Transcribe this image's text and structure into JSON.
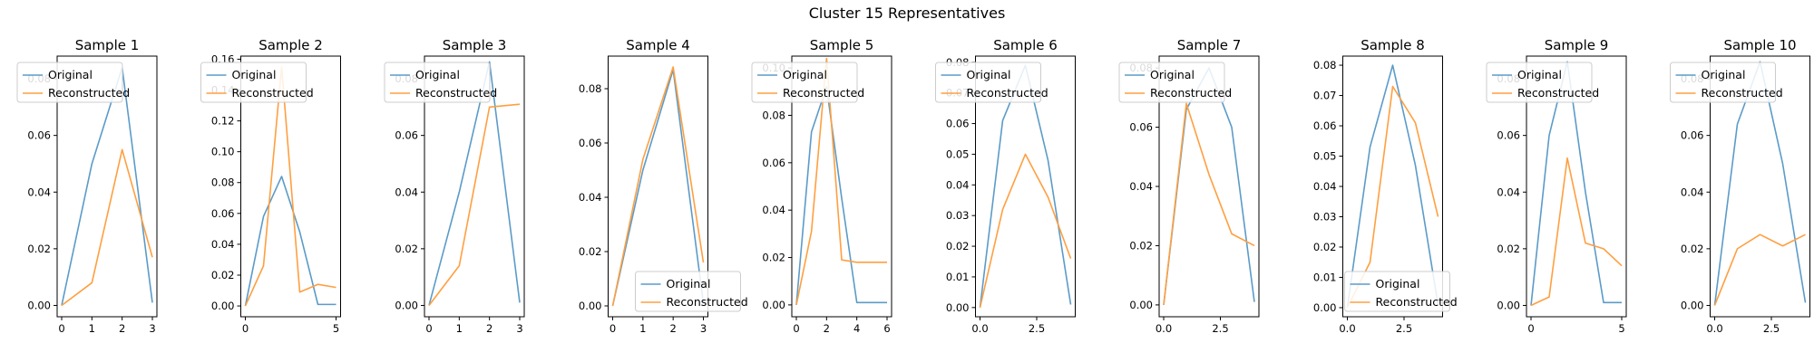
{
  "figure": {
    "title": "Cluster 15 Representatives"
  },
  "legend": {
    "original": "Original",
    "reconstructed": "Reconstructed"
  },
  "colors": {
    "original": "#5b9bc8",
    "reconstructed": "#ff9f40",
    "axes": "#000000",
    "background": "#ffffff"
  },
  "chart_data": [
    {
      "type": "line",
      "title": "Sample 1",
      "xlim": [
        -0.15,
        3.15
      ],
      "ylim": [
        -0.004,
        0.088
      ],
      "xticks": [
        0,
        1,
        2,
        3
      ],
      "xtick_labels": [
        "0",
        "1",
        "2",
        "3"
      ],
      "yticks": [
        0,
        0.02,
        0.04,
        0.06,
        0.08
      ],
      "ytick_labels": [
        "0.00",
        "0.02",
        "0.04",
        "0.06",
        "0.08"
      ],
      "legend_loc": "upper-left",
      "series": [
        {
          "name": "Original",
          "x": [
            0,
            1,
            2,
            3
          ],
          "y": [
            0.0,
            0.05,
            0.084,
            0.001
          ]
        },
        {
          "name": "Reconstructed",
          "x": [
            0,
            1,
            2,
            3
          ],
          "y": [
            0.0,
            0.008,
            0.055,
            0.017
          ]
        }
      ]
    },
    {
      "type": "line",
      "title": "Sample 2",
      "xlim": [
        -0.25,
        5.25
      ],
      "ylim": [
        -0.007,
        0.162
      ],
      "xticks": [
        0,
        5
      ],
      "xtick_labels": [
        "0",
        "5"
      ],
      "yticks": [
        0,
        0.02,
        0.04,
        0.06,
        0.08,
        0.1,
        0.12,
        0.14,
        0.16
      ],
      "ytick_labels": [
        "0.00",
        "0.02",
        "0.04",
        "0.06",
        "0.08",
        "0.10",
        "0.12",
        "0.14",
        "0.16"
      ],
      "legend_loc": "upper-left",
      "series": [
        {
          "name": "Original",
          "x": [
            0,
            1,
            2,
            3,
            4,
            5
          ],
          "y": [
            0.0,
            0.058,
            0.084,
            0.048,
            0.001,
            0.001
          ]
        },
        {
          "name": "Reconstructed",
          "x": [
            0,
            1,
            2,
            3,
            4,
            5
          ],
          "y": [
            0.0,
            0.026,
            0.155,
            0.009,
            0.014,
            0.012
          ]
        }
      ]
    },
    {
      "type": "line",
      "title": "Sample 3",
      "xlim": [
        -0.15,
        3.15
      ],
      "ylim": [
        -0.004,
        0.088
      ],
      "xticks": [
        0,
        1,
        2,
        3
      ],
      "xtick_labels": [
        "0",
        "1",
        "2",
        "3"
      ],
      "yticks": [
        0,
        0.02,
        0.04,
        0.06,
        0.08
      ],
      "ytick_labels": [
        "0.00",
        "0.02",
        "0.04",
        "0.06",
        "0.08"
      ],
      "legend_loc": "upper-left",
      "series": [
        {
          "name": "Original",
          "x": [
            0,
            1,
            2,
            3
          ],
          "y": [
            0.0,
            0.04,
            0.086,
            0.001
          ]
        },
        {
          "name": "Reconstructed",
          "x": [
            0,
            1,
            2,
            3
          ],
          "y": [
            0.0,
            0.014,
            0.07,
            0.071
          ]
        }
      ]
    },
    {
      "type": "line",
      "title": "Sample 4",
      "xlim": [
        -0.15,
        3.15
      ],
      "ylim": [
        -0.004,
        0.092
      ],
      "xticks": [
        0,
        1,
        2,
        3
      ],
      "xtick_labels": [
        "0",
        "1",
        "2",
        "3"
      ],
      "yticks": [
        0,
        0.02,
        0.04,
        0.06,
        0.08
      ],
      "ytick_labels": [
        "0.00",
        "0.02",
        "0.04",
        "0.06",
        "0.08"
      ],
      "legend_loc": "lower-right",
      "series": [
        {
          "name": "Original",
          "x": [
            0,
            1,
            2,
            3
          ],
          "y": [
            0.0,
            0.05,
            0.087,
            0.001
          ]
        },
        {
          "name": "Reconstructed",
          "x": [
            0,
            1,
            2,
            3
          ],
          "y": [
            0.0,
            0.054,
            0.088,
            0.016
          ]
        }
      ]
    },
    {
      "type": "line",
      "title": "Sample 5",
      "xlim": [
        -0.3,
        6.3
      ],
      "ylim": [
        -0.005,
        0.105
      ],
      "xticks": [
        0,
        2,
        4,
        6
      ],
      "xtick_labels": [
        "0",
        "2",
        "4",
        "6"
      ],
      "yticks": [
        0,
        0.02,
        0.04,
        0.06,
        0.08,
        0.1
      ],
      "ytick_labels": [
        "0.00",
        "0.02",
        "0.04",
        "0.06",
        "0.08",
        "0.10"
      ],
      "legend_loc": "upper-left",
      "series": [
        {
          "name": "Original",
          "x": [
            0,
            1,
            2,
            3,
            4,
            5,
            6
          ],
          "y": [
            0.0,
            0.073,
            0.092,
            0.045,
            0.001,
            0.001,
            0.001
          ]
        },
        {
          "name": "Reconstructed",
          "x": [
            0,
            1,
            2,
            3,
            4,
            5,
            6
          ],
          "y": [
            0.0,
            0.031,
            0.104,
            0.019,
            0.018,
            0.018,
            0.018
          ]
        }
      ]
    },
    {
      "type": "line",
      "title": "Sample 6",
      "xlim": [
        -0.2,
        4.2
      ],
      "ylim": [
        -0.003,
        0.082
      ],
      "xticks": [
        0,
        2.5
      ],
      "xtick_labels": [
        "0.0",
        "2.5"
      ],
      "yticks": [
        0,
        0.01,
        0.02,
        0.03,
        0.04,
        0.05,
        0.06,
        0.07,
        0.08
      ],
      "ytick_labels": [
        "0.00",
        "0.01",
        "0.02",
        "0.03",
        "0.04",
        "0.05",
        "0.06",
        "0.07",
        "0.08"
      ],
      "legend_loc": "upper-left",
      "series": [
        {
          "name": "Original",
          "x": [
            0,
            1,
            2,
            3,
            4
          ],
          "y": [
            0.0,
            0.061,
            0.079,
            0.048,
            0.001
          ]
        },
        {
          "name": "Reconstructed",
          "x": [
            0,
            1,
            2,
            3,
            4
          ],
          "y": [
            0.0,
            0.032,
            0.05,
            0.036,
            0.016
          ]
        }
      ]
    },
    {
      "type": "line",
      "title": "Sample 7",
      "xlim": [
        -0.2,
        4.2
      ],
      "ylim": [
        -0.004,
        0.084
      ],
      "xticks": [
        0,
        2.5
      ],
      "xtick_labels": [
        "0.0",
        "2.5"
      ],
      "yticks": [
        0,
        0.02,
        0.04,
        0.06,
        0.08
      ],
      "ytick_labels": [
        "0.00",
        "0.02",
        "0.04",
        "0.06",
        "0.08"
      ],
      "legend_loc": "upper-left",
      "series": [
        {
          "name": "Original",
          "x": [
            0,
            1,
            2,
            3,
            4
          ],
          "y": [
            0.0,
            0.066,
            0.08,
            0.06,
            0.001
          ]
        },
        {
          "name": "Reconstructed",
          "x": [
            0,
            1,
            2,
            3,
            4
          ],
          "y": [
            0.0,
            0.068,
            0.044,
            0.024,
            0.02
          ]
        }
      ]
    },
    {
      "type": "line",
      "title": "Sample 8",
      "xlim": [
        -0.2,
        4.2
      ],
      "ylim": [
        -0.003,
        0.083
      ],
      "xticks": [
        0,
        2.5
      ],
      "xtick_labels": [
        "0.0",
        "2.5"
      ],
      "yticks": [
        0,
        0.01,
        0.02,
        0.03,
        0.04,
        0.05,
        0.06,
        0.07,
        0.08
      ],
      "ytick_labels": [
        "0.00",
        "0.01",
        "0.02",
        "0.03",
        "0.04",
        "0.05",
        "0.06",
        "0.07",
        "0.08"
      ],
      "legend_loc": "lower-left",
      "series": [
        {
          "name": "Original",
          "x": [
            0,
            1,
            2,
            3,
            4
          ],
          "y": [
            0.0,
            0.053,
            0.08,
            0.047,
            0.001
          ]
        },
        {
          "name": "Reconstructed",
          "x": [
            0,
            1,
            2,
            3,
            4
          ],
          "y": [
            0.0,
            0.015,
            0.073,
            0.061,
            0.03
          ]
        }
      ]
    },
    {
      "type": "line",
      "title": "Sample 9",
      "xlim": [
        -0.25,
        5.25
      ],
      "ylim": [
        -0.004,
        0.088
      ],
      "xticks": [
        0,
        5
      ],
      "xtick_labels": [
        "0",
        "5"
      ],
      "yticks": [
        0,
        0.02,
        0.04,
        0.06,
        0.08
      ],
      "ytick_labels": [
        "0.00",
        "0.02",
        "0.04",
        "0.06",
        "0.08"
      ],
      "legend_loc": "upper-left",
      "series": [
        {
          "name": "Original",
          "x": [
            0,
            1,
            2,
            3,
            4,
            5
          ],
          "y": [
            0.0,
            0.06,
            0.086,
            0.04,
            0.001,
            0.001
          ]
        },
        {
          "name": "Reconstructed",
          "x": [
            0,
            1,
            2,
            3,
            4,
            5
          ],
          "y": [
            0.0,
            0.003,
            0.052,
            0.022,
            0.02,
            0.014
          ]
        }
      ]
    },
    {
      "type": "line",
      "title": "Sample 10",
      "xlim": [
        -0.2,
        4.2
      ],
      "ylim": [
        -0.004,
        0.088
      ],
      "xticks": [
        0,
        2.5
      ],
      "xtick_labels": [
        "0.0",
        "2.5"
      ],
      "yticks": [
        0,
        0.02,
        0.04,
        0.06,
        0.08
      ],
      "ytick_labels": [
        "0.00",
        "0.02",
        "0.04",
        "0.06",
        "0.08"
      ],
      "legend_loc": "upper-left",
      "series": [
        {
          "name": "Original",
          "x": [
            0,
            1,
            2,
            3,
            4
          ],
          "y": [
            0.0,
            0.064,
            0.086,
            0.05,
            0.001
          ]
        },
        {
          "name": "Reconstructed",
          "x": [
            0,
            1,
            2,
            3,
            4
          ],
          "y": [
            0.0,
            0.02,
            0.025,
            0.021,
            0.025
          ]
        }
      ]
    }
  ]
}
